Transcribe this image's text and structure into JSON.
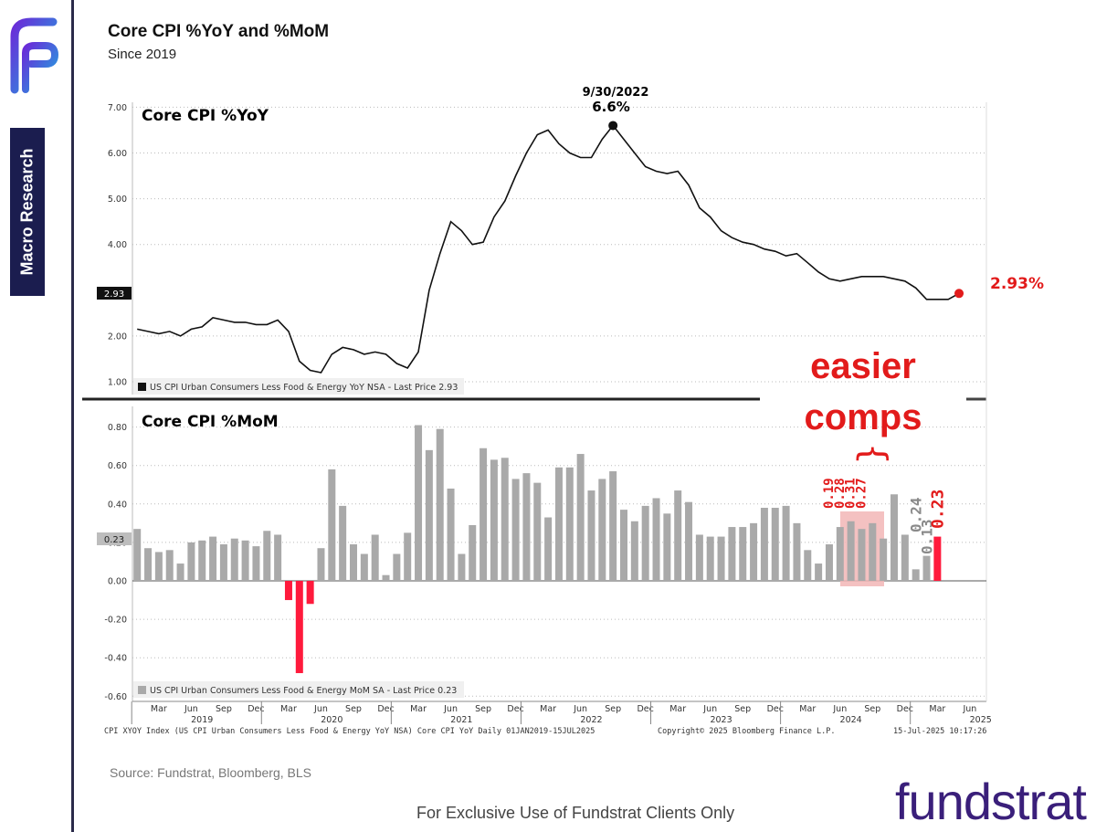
{
  "header": {
    "title": "Core CPI %YoY and %MoM",
    "subtitle": "Since 2019"
  },
  "sidebar": {
    "tab_label": "Macro Research",
    "logo_icon": "fundstrat-f-logo-icon"
  },
  "colors": {
    "line": "#111111",
    "bar": "#a9a9a9",
    "negative": "#ff1a3c",
    "accent": "#e21b1b",
    "highlight": "#f2b6b6",
    "brand": "#3a1f7a"
  },
  "chart_data": [
    {
      "type": "line",
      "panel_title": "Core CPI %YoY",
      "legend": "US CPI Urban Consumers Less Food & Energy YoY NSA - Last Price 2.93",
      "last_price_tag": "2.93",
      "ylim": [
        1.0,
        7.0
      ],
      "yticks": [
        "7.00",
        "6.00",
        "5.00",
        "4.00",
        "2.00",
        "1.00"
      ],
      "peak_annotation": {
        "date": "9/30/2022",
        "value_label": "6.6%",
        "index": 44
      },
      "last_value_label": "2.93%",
      "x_start": "2019-01",
      "values": [
        2.15,
        2.1,
        2.05,
        2.1,
        2.0,
        2.15,
        2.2,
        2.4,
        2.35,
        2.3,
        2.3,
        2.25,
        2.25,
        2.35,
        2.1,
        1.45,
        1.25,
        1.2,
        1.6,
        1.75,
        1.7,
        1.6,
        1.65,
        1.6,
        1.4,
        1.3,
        1.65,
        3.0,
        3.8,
        4.5,
        4.3,
        4.0,
        4.05,
        4.6,
        4.95,
        5.5,
        6.0,
        6.4,
        6.5,
        6.2,
        6.0,
        5.9,
        5.9,
        6.3,
        6.6,
        6.3,
        6.0,
        5.7,
        5.6,
        5.55,
        5.6,
        5.3,
        4.8,
        4.6,
        4.3,
        4.15,
        4.05,
        4.0,
        3.9,
        3.85,
        3.75,
        3.8,
        3.6,
        3.4,
        3.25,
        3.2,
        3.25,
        3.3,
        3.3,
        3.3,
        3.25,
        3.2,
        3.05,
        2.8,
        2.8,
        2.8,
        2.93
      ]
    },
    {
      "type": "bar",
      "panel_title": "Core CPI %MoM",
      "legend": "US CPI Urban Consumers Less Food & Energy MoM SA - Last Price 0.23",
      "last_price_tag": "0.23",
      "ylim": [
        -0.6,
        0.8
      ],
      "yticks": [
        "0.80",
        "0.60",
        "0.40",
        "0.20",
        "0.00",
        "-0.20",
        "-0.40",
        "-0.60"
      ],
      "x_start": "2019-01",
      "values": [
        0.27,
        0.17,
        0.15,
        0.16,
        0.09,
        0.2,
        0.21,
        0.23,
        0.19,
        0.22,
        0.21,
        0.18,
        0.26,
        0.24,
        -0.1,
        -0.48,
        -0.12,
        0.17,
        0.58,
        0.39,
        0.19,
        0.14,
        0.24,
        0.03,
        0.14,
        0.25,
        0.81,
        0.68,
        0.79,
        0.48,
        0.14,
        0.29,
        0.69,
        0.63,
        0.64,
        0.53,
        0.56,
        0.51,
        0.33,
        0.59,
        0.59,
        0.66,
        0.47,
        0.53,
        0.57,
        0.37,
        0.31,
        0.39,
        0.43,
        0.35,
        0.47,
        0.41,
        0.24,
        0.23,
        0.23,
        0.28,
        0.28,
        0.3,
        0.38,
        0.38,
        0.39,
        0.3,
        0.16,
        0.09,
        0.19,
        0.28,
        0.31,
        0.27,
        0.3,
        0.22,
        0.45,
        0.24,
        0.06,
        0.13,
        0.23
      ],
      "highlight_labels": [
        "0.19",
        "0.28",
        "0.31",
        "0.27"
      ],
      "end_labels": [
        "0.24",
        "0.13",
        "0.23"
      ],
      "annotation": {
        "line1": "easier",
        "line2": "comps",
        "bracket": "{"
      }
    }
  ],
  "x_axis": {
    "month_labels": [
      "Mar",
      "Jun",
      "Sep",
      "Dec",
      "Mar",
      "Jun",
      "Sep",
      "Dec",
      "Mar",
      "Jun",
      "Sep",
      "Dec",
      "Mar",
      "Jun",
      "Sep",
      "Dec",
      "Mar",
      "Jun",
      "Sep",
      "Dec",
      "Mar",
      "Jun",
      "Sep",
      "Dec",
      "Mar",
      "Jun"
    ],
    "year_labels": [
      "2019",
      "2020",
      "2021",
      "2022",
      "2023",
      "2024",
      "2025"
    ]
  },
  "bloomberg": {
    "index_note": "CPI XYOY Index (US CPI Urban Consumers Less Food & Energy YoY NSA) Core CPI YoY  Daily 01JAN2019-15JUL2025",
    "copyright": "Copyright© 2025 Bloomberg Finance L.P.",
    "timestamp": "15-Jul-2025 10:17:26"
  },
  "footer": {
    "source": "Source: Fundstrat, Bloomberg, BLS",
    "note": "For Exclusive Use of Fundstrat Clients Only",
    "brand": "fundstrat"
  }
}
